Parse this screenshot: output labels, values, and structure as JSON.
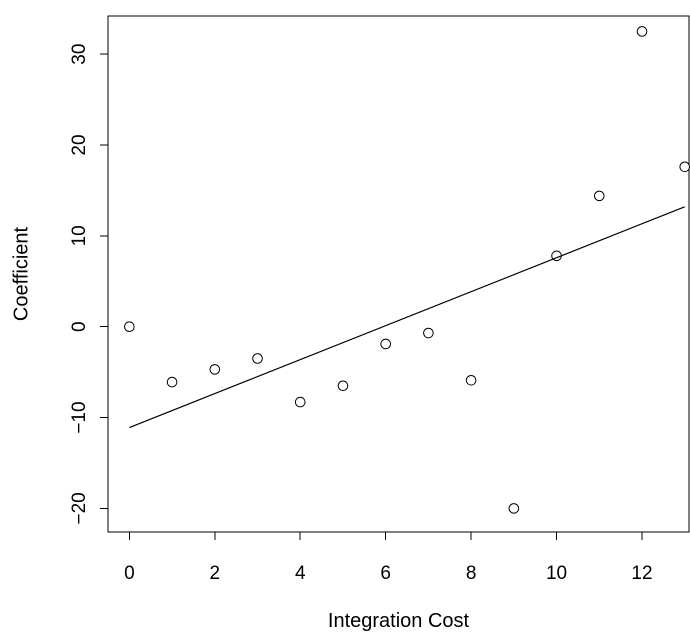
{
  "chart_data": {
    "type": "scatter",
    "title": "",
    "xlabel": "Integration Cost",
    "ylabel": "Coefficient",
    "xlim": [
      -0.5,
      13.1
    ],
    "ylim": [
      -22.6,
      34.2
    ],
    "x_ticks": [
      0,
      2,
      4,
      6,
      8,
      10,
      12
    ],
    "y_ticks": [
      -20,
      -10,
      0,
      10,
      20,
      30
    ],
    "x_tick_labels": [
      "0",
      "2",
      "4",
      "6",
      "8",
      "10",
      "12"
    ],
    "y_tick_labels": [
      "−20",
      "−10",
      "0",
      "10",
      "20",
      "30"
    ],
    "points": [
      {
        "x": 0,
        "y": 0.0
      },
      {
        "x": 1,
        "y": -6.1
      },
      {
        "x": 2,
        "y": -4.7
      },
      {
        "x": 3,
        "y": -3.5
      },
      {
        "x": 4,
        "y": -8.3
      },
      {
        "x": 5,
        "y": -6.5
      },
      {
        "x": 6,
        "y": -1.9
      },
      {
        "x": 7,
        "y": -0.7
      },
      {
        "x": 8,
        "y": -5.9
      },
      {
        "x": 9,
        "y": -20.0
      },
      {
        "x": 10,
        "y": 7.8
      },
      {
        "x": 11,
        "y": 14.4
      },
      {
        "x": 12,
        "y": 32.5
      },
      {
        "x": 13,
        "y": 17.6
      }
    ],
    "fit_line": {
      "x": [
        0,
        13
      ],
      "y": [
        -11.1,
        13.2
      ]
    },
    "grid": false,
    "legend": "none"
  }
}
